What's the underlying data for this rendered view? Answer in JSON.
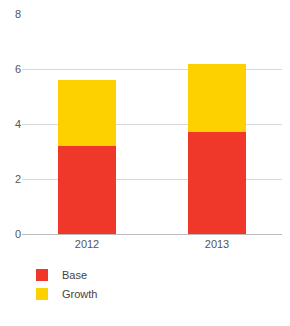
{
  "chart_data": {
    "type": "bar",
    "stacked": true,
    "categories": [
      "2012",
      "2013"
    ],
    "series": [
      {
        "name": "Base",
        "color": "#f0382a",
        "values": [
          3.2,
          3.7
        ]
      },
      {
        "name": "Growth",
        "color": "#fdd100",
        "values": [
          2.4,
          2.5
        ]
      }
    ],
    "ylim": [
      0,
      8
    ],
    "yticks": [
      0,
      2,
      4,
      6,
      8
    ],
    "grid": true,
    "legend": "bottom left"
  }
}
